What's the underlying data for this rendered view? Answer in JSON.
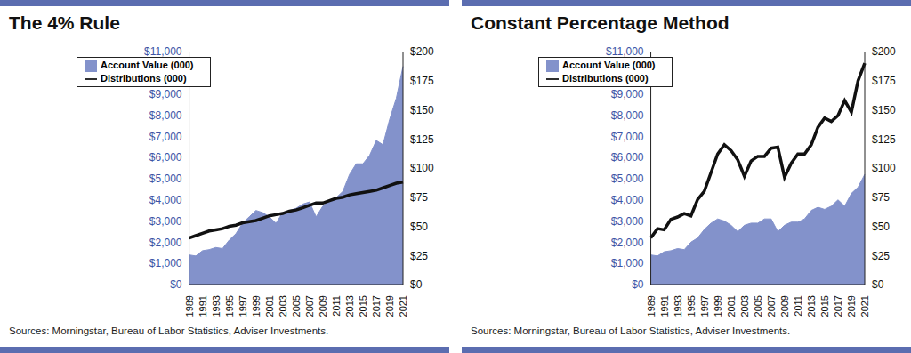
{
  "chart_data": [
    {
      "type": "area_line",
      "title": "The 4% Rule",
      "annotation": "Sources: Morningstar, Bureau of Labor Statistics, Adviser Investments.",
      "categories": [
        "1989",
        null,
        "1991",
        null,
        "1993",
        null,
        "1995",
        null,
        "1997",
        null,
        "1999",
        null,
        "2001",
        null,
        "2003",
        null,
        "2005",
        null,
        "2007",
        null,
        "2009",
        null,
        "2011",
        null,
        "2013",
        null,
        "2015",
        null,
        "2017",
        null,
        "2019",
        null,
        "2021"
      ],
      "series": [
        {
          "name": "Account Value (000)",
          "type": "area",
          "color": "#8392cb",
          "values": [
            1400,
            1350,
            1600,
            1650,
            1750,
            1700,
            2100,
            2400,
            2900,
            3200,
            3500,
            3400,
            3200,
            2900,
            3400,
            3500,
            3600,
            3800,
            3900,
            3200,
            3700,
            4000,
            4100,
            4400,
            5200,
            5700,
            5700,
            6100,
            6800,
            6600,
            7800,
            8800,
            10300
          ]
        },
        {
          "name": "Distributions (000)",
          "type": "line",
          "axis": "y2",
          "color": "#111111",
          "values": [
            40,
            42,
            44,
            46,
            47,
            48,
            50,
            51,
            53,
            54,
            55,
            57,
            59,
            60,
            61,
            63,
            64,
            66,
            68,
            70,
            70,
            72,
            74,
            75,
            77,
            78,
            79,
            80,
            81,
            83,
            85,
            87,
            88
          ]
        }
      ],
      "ylim": [
        0,
        11000
      ],
      "yticks": [
        {
          "value": 0,
          "label": "$0"
        },
        {
          "value": 1000,
          "label": "$1,000"
        },
        {
          "value": 2000,
          "label": "$2,000"
        },
        {
          "value": 3000,
          "label": "$3,000"
        },
        {
          "value": 4000,
          "label": "$4,000"
        },
        {
          "value": 5000,
          "label": "$5,000"
        },
        {
          "value": 6000,
          "label": "$6,000"
        },
        {
          "value": 7000,
          "label": "$7,000"
        },
        {
          "value": 8000,
          "label": "$8,000"
        },
        {
          "value": 9000,
          "label": "$9,000"
        },
        {
          "value": 10000,
          "label": "$10,000"
        },
        {
          "value": 11000,
          "label": "$11,000"
        }
      ],
      "y2lim": [
        0,
        200
      ],
      "y2ticks": [
        {
          "value": 0,
          "label": "$0"
        },
        {
          "value": 25,
          "label": "$25"
        },
        {
          "value": 50,
          "label": "$50"
        },
        {
          "value": 75,
          "label": "$75"
        },
        {
          "value": 100,
          "label": "$100"
        },
        {
          "value": 125,
          "label": "$125"
        },
        {
          "value": 150,
          "label": "$150"
        },
        {
          "value": 175,
          "label": "$175"
        },
        {
          "value": 200,
          "label": "$200"
        }
      ],
      "legend": "upper left",
      "grid": false
    },
    {
      "type": "area_line",
      "title": "Constant Percentage Method",
      "annotation": "Sources: Morningstar, Bureau of Labor Statistics, Adviser Investments.",
      "categories": [
        "1989",
        null,
        "1991",
        null,
        "1993",
        null,
        "1995",
        null,
        "1997",
        null,
        "1999",
        null,
        "2001",
        null,
        "2003",
        null,
        "2005",
        null,
        "2007",
        null,
        "2009",
        null,
        "2011",
        null,
        "2013",
        null,
        "2015",
        null,
        "2017",
        null,
        "2019",
        null,
        "2021"
      ],
      "series": [
        {
          "name": "Account Value (000)",
          "type": "area",
          "color": "#8392cb",
          "values": [
            1400,
            1350,
            1550,
            1600,
            1700,
            1650,
            2000,
            2200,
            2600,
            2900,
            3100,
            3000,
            2800,
            2500,
            2800,
            2900,
            2900,
            3100,
            3100,
            2500,
            2800,
            2950,
            2950,
            3100,
            3500,
            3650,
            3550,
            3700,
            4000,
            3700,
            4300,
            4600,
            5200
          ]
        },
        {
          "name": "Distributions (000)",
          "type": "line",
          "axis": "y2",
          "color": "#111111",
          "values": [
            40,
            48,
            47,
            56,
            58,
            61,
            59,
            73,
            80,
            96,
            112,
            120,
            115,
            107,
            93,
            106,
            110,
            110,
            117,
            118,
            92,
            104,
            112,
            112,
            120,
            135,
            143,
            140,
            145,
            158,
            148,
            175,
            190
          ]
        }
      ],
      "ylim": [
        0,
        11000
      ],
      "yticks": [
        {
          "value": 0,
          "label": "$0"
        },
        {
          "value": 1000,
          "label": "$1,000"
        },
        {
          "value": 2000,
          "label": "$2,000"
        },
        {
          "value": 3000,
          "label": "$3,000"
        },
        {
          "value": 4000,
          "label": "$4,000"
        },
        {
          "value": 5000,
          "label": "$5,000"
        },
        {
          "value": 6000,
          "label": "$6,000"
        },
        {
          "value": 7000,
          "label": "$7,000"
        },
        {
          "value": 8000,
          "label": "$8,000"
        },
        {
          "value": 9000,
          "label": "$9,000"
        },
        {
          "value": 10000,
          "label": "$10,000"
        },
        {
          "value": 11000,
          "label": "$11,000"
        }
      ],
      "y2lim": [
        0,
        200
      ],
      "y2ticks": [
        {
          "value": 0,
          "label": "$0"
        },
        {
          "value": 25,
          "label": "$25"
        },
        {
          "value": 50,
          "label": "$50"
        },
        {
          "value": 75,
          "label": "$75"
        },
        {
          "value": 100,
          "label": "$100"
        },
        {
          "value": 125,
          "label": "$125"
        },
        {
          "value": 150,
          "label": "$150"
        },
        {
          "value": 175,
          "label": "$175"
        },
        {
          "value": 200,
          "label": "$200"
        }
      ],
      "legend": "upper left",
      "grid": false
    }
  ]
}
